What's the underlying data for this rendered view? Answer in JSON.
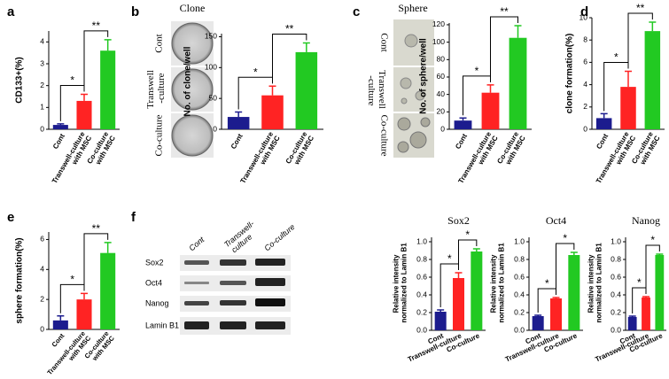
{
  "panels": {
    "labels": [
      "a",
      "b",
      "c",
      "d",
      "e",
      "f"
    ]
  },
  "images": {
    "clone": {
      "title": "Clone",
      "rows": [
        "Cont",
        "Transwell\n-culture",
        "Co-culture"
      ]
    },
    "sphere": {
      "title": "Sphere",
      "rows": [
        "Cont",
        "Transwell\n-culture",
        "Co-culture"
      ]
    },
    "blot": {
      "columns": [
        "Cont",
        "Transwell-\nculture",
        "Co-culture"
      ],
      "rows": [
        "Sox2",
        "Oct4",
        "Nanog",
        "Lamin B1"
      ]
    }
  },
  "chart_data": [
    {
      "type": "bar",
      "ylabel": "CD133+(%)",
      "categories": [
        "Cont",
        "Transwell-culture\nwith MSC",
        "Co-culture\nwith MSC"
      ],
      "values": [
        0.2,
        1.3,
        3.6
      ],
      "errors": [
        0.05,
        0.3,
        0.5
      ],
      "colors": [
        "#1c1c8e",
        "#ff2323",
        "#22c922"
      ],
      "ylim": [
        0,
        4.5
      ],
      "yticks": [
        0,
        1,
        2,
        3,
        4
      ],
      "brackets": [
        {
          "label": "*",
          "from": 0,
          "to": 1
        },
        {
          "label": "**",
          "from": 1,
          "to": 2
        }
      ]
    },
    {
      "type": "bar",
      "ylabel": "No. of clone/well",
      "categories": [
        "Cont",
        "Transwell-culture\nwith MSC",
        "Co-culture\nwith MSC"
      ],
      "values": [
        20,
        55,
        125
      ],
      "errors": [
        8,
        15,
        15
      ],
      "colors": [
        "#1c1c8e",
        "#ff2323",
        "#22c922"
      ],
      "ylim": [
        0,
        155
      ],
      "yticks": [
        0,
        50,
        100,
        150
      ],
      "brackets": [
        {
          "label": "*",
          "from": 0,
          "to": 1
        },
        {
          "label": "**",
          "from": 1,
          "to": 2
        }
      ]
    },
    {
      "type": "bar",
      "ylabel": "No. of sphere/well",
      "categories": [
        "Cont",
        "Transwell-culture\nwith MSC",
        "Co-culture\nwith MSC"
      ],
      "values": [
        10,
        42,
        105
      ],
      "errors": [
        3,
        9,
        14
      ],
      "colors": [
        "#1c1c8e",
        "#ff2323",
        "#22c922"
      ],
      "ylim": [
        0,
        122
      ],
      "yticks": [
        0,
        20,
        40,
        60,
        80,
        100,
        120
      ],
      "brackets": [
        {
          "label": "*",
          "from": 0,
          "to": 1
        },
        {
          "label": "**",
          "from": 1,
          "to": 2
        }
      ]
    },
    {
      "type": "bar",
      "ylabel": "clone formation(%)",
      "categories": [
        "Cont",
        "Transwell-culture\nwith MSC",
        "Co-culture\nwith MSC"
      ],
      "values": [
        1.0,
        3.8,
        8.8
      ],
      "errors": [
        0.4,
        1.4,
        0.8
      ],
      "colors": [
        "#1c1c8e",
        "#ff2323",
        "#22c922"
      ],
      "ylim": [
        0,
        10
      ],
      "yticks": [
        0,
        2,
        4,
        6,
        8,
        10
      ],
      "brackets": [
        {
          "label": "*",
          "from": 0,
          "to": 1
        },
        {
          "label": "**",
          "from": 1,
          "to": 2
        }
      ]
    },
    {
      "type": "bar",
      "ylabel": "sphere formation(%)",
      "categories": [
        "Cont",
        "Transwell-culture\nwith MSC",
        "Co-culture\nwith MSC"
      ],
      "values": [
        0.6,
        2.0,
        5.1
      ],
      "errors": [
        0.3,
        0.4,
        0.7
      ],
      "colors": [
        "#1c1c8e",
        "#ff2323",
        "#22c922"
      ],
      "ylim": [
        0,
        6.5
      ],
      "yticks": [
        0,
        2,
        4,
        6
      ],
      "brackets": [
        {
          "label": "*",
          "from": 0,
          "to": 1
        },
        {
          "label": "**",
          "from": 1,
          "to": 2
        }
      ]
    },
    {
      "type": "bar",
      "title": "Sox2",
      "ylabel": "Relative intensity\nnormalized to Lamin B1",
      "categories": [
        "Cont",
        "Transwell-culture",
        "Co-culture"
      ],
      "values": [
        0.21,
        0.59,
        0.89
      ],
      "errors": [
        0.02,
        0.06,
        0.03
      ],
      "colors": [
        "#1c1c8e",
        "#ff2323",
        "#22c922"
      ],
      "ylim": [
        0,
        1.05
      ],
      "yticks": [
        {
          "value": 0,
          "label": "0.0"
        },
        0.2,
        0.4,
        0.6,
        0.8,
        {
          "value": 1,
          "label": "1.0"
        }
      ],
      "brackets": [
        {
          "label": "*",
          "from": 0,
          "to": 1
        },
        {
          "label": "*",
          "from": 1,
          "to": 2
        }
      ]
    },
    {
      "type": "bar",
      "title": "Oct4",
      "ylabel": "Relative intensity\nnormalized to Lamin B1",
      "categories": [
        "Cont",
        "Transwell-culture",
        "Co-culture"
      ],
      "values": [
        0.16,
        0.36,
        0.85
      ],
      "errors": [
        0.01,
        0.01,
        0.03
      ],
      "colors": [
        "#1c1c8e",
        "#ff2323",
        "#22c922"
      ],
      "ylim": [
        0,
        1.05
      ],
      "yticks": [
        {
          "value": 0,
          "label": "0.0"
        },
        0.2,
        0.4,
        0.6,
        0.8,
        {
          "value": 1,
          "label": "1.0"
        }
      ],
      "brackets": [
        {
          "label": "*",
          "from": 0,
          "to": 1
        },
        {
          "label": "*",
          "from": 1,
          "to": 2
        }
      ]
    },
    {
      "type": "bar",
      "title": "Nanog",
      "ylabel": "Relative intensity\nnormalized to Lamin B1",
      "categories": [
        "Cont",
        "Transwell-culture",
        "Co-culture"
      ],
      "values": [
        0.15,
        0.37,
        0.85
      ],
      "errors": [
        0.01,
        0.01,
        0.01
      ],
      "colors": [
        "#1c1c8e",
        "#ff2323",
        "#22c922"
      ],
      "ylim": [
        0,
        1.05
      ],
      "yticks": [
        {
          "value": 0,
          "label": "0.0"
        },
        0.2,
        0.4,
        0.6,
        0.8,
        {
          "value": 1,
          "label": "1.0"
        }
      ],
      "brackets": [
        {
          "label": "*",
          "from": 0,
          "to": 1
        },
        {
          "label": "*",
          "from": 1,
          "to": 2
        }
      ]
    }
  ]
}
